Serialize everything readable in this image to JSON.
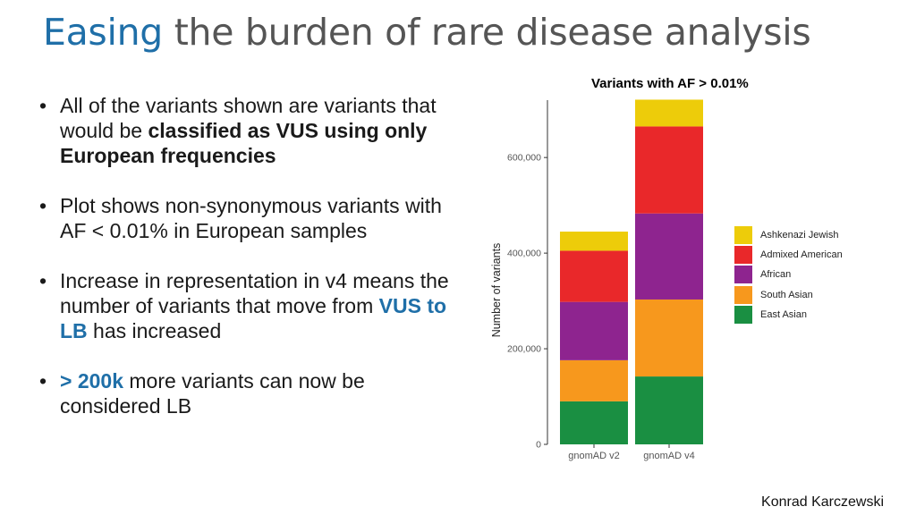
{
  "slide": {
    "title_accent": "Easing",
    "title_rest": " the burden of rare disease analysis",
    "author": "Konrad Karczewski",
    "bullets": [
      {
        "parts": [
          {
            "text": "All of the variants shown are variants that would be ",
            "style": "normal"
          },
          {
            "text": "classified as VUS using only European frequencies",
            "style": "bold"
          }
        ]
      },
      {
        "parts": [
          {
            "text": "Plot shows non-synonymous variants with AF < 0.01% in European samples",
            "style": "normal"
          }
        ]
      },
      {
        "parts": [
          {
            "text": "Increase in representation in v4 means the number of variants that move from ",
            "style": "normal"
          },
          {
            "text": "VUS to LB",
            "style": "blue"
          },
          {
            "text": " has increased",
            "style": "normal"
          }
        ]
      },
      {
        "parts": [
          {
            "text": "> 200k",
            "style": "blue"
          },
          {
            "text": " more variants can now be considered LB",
            "style": "normal"
          }
        ]
      }
    ],
    "bullet_char": "•"
  },
  "chart_data": {
    "type": "bar",
    "stacked": true,
    "title": "Variants with AF > 0.01%",
    "ylabel": "Number of variants",
    "xlabel": "",
    "categories": [
      "gnomAD v2",
      "gnomAD v4"
    ],
    "ylim": [
      0,
      720000
    ],
    "yticks": [
      0,
      200000,
      400000,
      600000
    ],
    "ytick_labels": [
      "0",
      "200,000",
      "400,000",
      "600,000"
    ],
    "grid": false,
    "legend_position": "right",
    "series": [
      {
        "name": "East Asian",
        "color": "#1a8f42",
        "values": [
          90000,
          142000
        ]
      },
      {
        "name": "South Asian",
        "color": "#f7981d",
        "values": [
          86000,
          161000
        ]
      },
      {
        "name": "African",
        "color": "#8e248f",
        "values": [
          122000,
          180000
        ]
      },
      {
        "name": "Admixed American",
        "color": "#e9282a",
        "values": [
          107000,
          182000
        ]
      },
      {
        "name": "Ashkenazi Jewish",
        "color": "#edcc0a",
        "values": [
          40000,
          56000
        ]
      }
    ],
    "legend_order": [
      "Ashkenazi Jewish",
      "Admixed American",
      "African",
      "South Asian",
      "East Asian"
    ]
  }
}
